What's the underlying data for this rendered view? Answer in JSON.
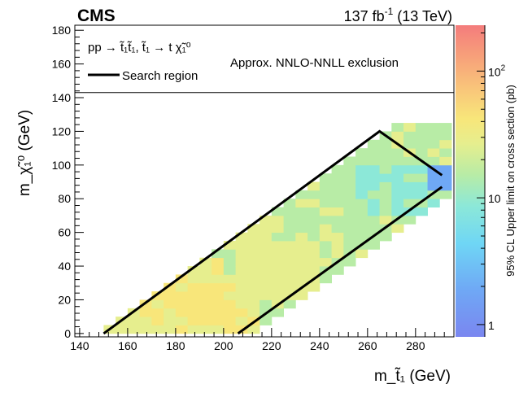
{
  "header": {
    "experiment": "CMS",
    "lumi_prefix": "137 fb",
    "lumi_exp": "-1",
    "energy": " (13 TeV)"
  },
  "legend": {
    "process": "pp → t̃₁t̃₁, t̃₁ → t χ̃₁⁰",
    "search_region": "Search region",
    "exclusion": "Approx. NNLO-NNLL exclusion"
  },
  "colors": {
    "palette": [
      "#7a86f0",
      "#6fa8f5",
      "#6fd6f5",
      "#8ce8d8",
      "#b8eca6",
      "#e6ee8e",
      "#f8e67a",
      "#f9c47a",
      "#f7a07a",
      "#f47c7c"
    ],
    "contour": "#000000"
  },
  "chart_data": {
    "type": "heatmap",
    "xlabel": "m_t̃₁ (GeV)",
    "ylabel": "m_χ̃₁⁰ (GeV)",
    "zlabel": "95% CL Upper limit on cross section (pb)",
    "xlim": [
      138,
      296
    ],
    "ylim": [
      -2,
      183
    ],
    "zlim": [
      0.8,
      230
    ],
    "zscale": "log",
    "x_ticks": [
      140,
      160,
      180,
      200,
      220,
      240,
      260,
      280
    ],
    "y_ticks": [
      0,
      20,
      40,
      60,
      80,
      100,
      120,
      140,
      160,
      180
    ],
    "z_ticks": [
      {
        "value": 1,
        "label": "1"
      },
      {
        "value": 10,
        "label": "10"
      },
      {
        "value": 100,
        "label": "10",
        "exp": "2"
      }
    ],
    "cell_size_gev": 5,
    "diagonal_band": {
      "dm_min": 150,
      "dm_max": 212
    },
    "cell_groups": [
      {
        "x_range": [
          150,
          165
        ],
        "y_range": [
          0,
          12
        ],
        "z": 16
      },
      {
        "x_range": [
          165,
          200
        ],
        "y_range": [
          0,
          45
        ],
        "z": 22
      },
      {
        "x_range": [
          185,
          205
        ],
        "y_range": [
          5,
          30
        ],
        "z": 30
      },
      {
        "x_range": [
          170,
          195
        ],
        "y_range": [
          10,
          25
        ],
        "z": 28
      },
      {
        "x_range": [
          200,
          215
        ],
        "y_range": [
          0,
          30
        ],
        "z": 24
      },
      {
        "x_range": [
          205,
          240
        ],
        "y_range": [
          20,
          70
        ],
        "z": 18
      },
      {
        "x_range": [
          230,
          240
        ],
        "y_range": [
          55,
          70
        ],
        "z": 24
      },
      {
        "x_range": [
          220,
          250
        ],
        "y_range": [
          55,
          110
        ],
        "z": 13
      },
      {
        "x_range": [
          240,
          270
        ],
        "y_range": [
          75,
          120
        ],
        "z": 10
      },
      {
        "x_range": [
          255,
          290
        ],
        "y_range": [
          70,
          100
        ],
        "z": 7
      },
      {
        "x_range": [
          285,
          292
        ],
        "y_range": [
          85,
          100
        ],
        "z": 2
      }
    ],
    "expected_limit_mean_pb": 12,
    "observed_exclusion_y": 143,
    "search_region": {
      "upper_edge": [
        [
          150,
          0
        ],
        [
          265,
          120
        ],
        [
          291,
          94
        ]
      ],
      "lower_edge": [
        [
          206,
          0
        ],
        [
          291,
          87
        ]
      ]
    },
    "grid": false,
    "legend_position": "top-left"
  }
}
